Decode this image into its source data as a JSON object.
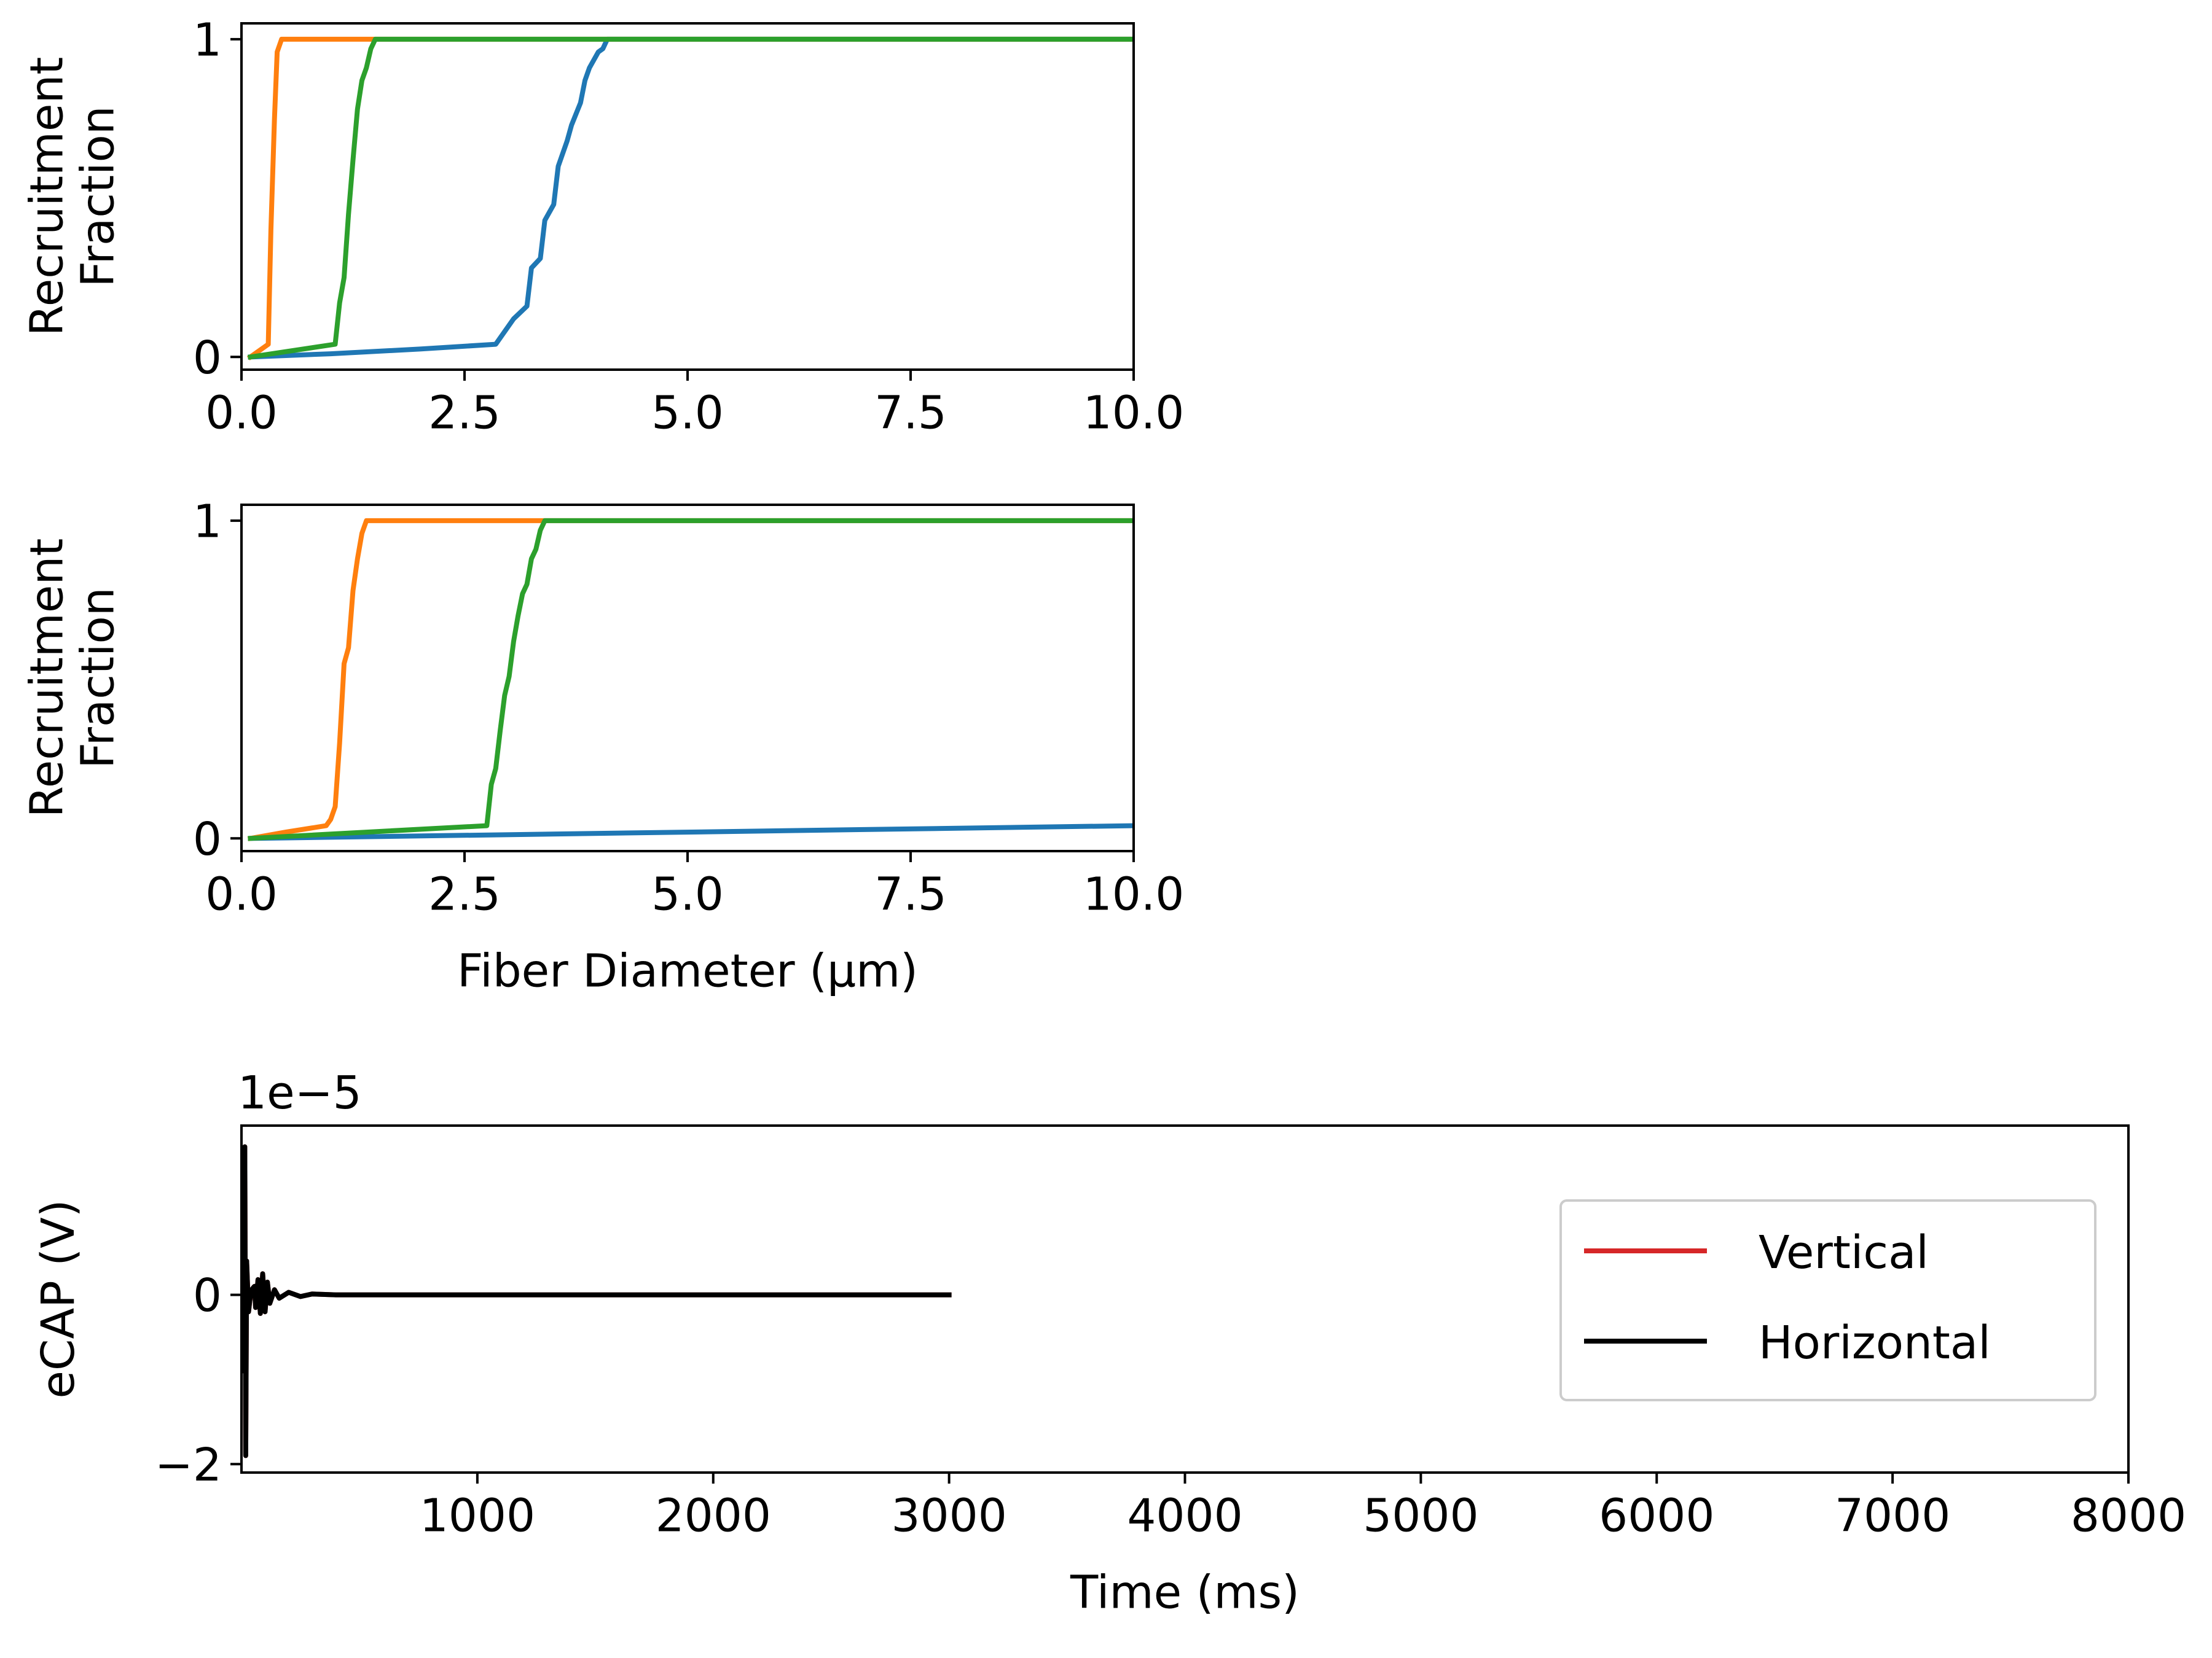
{
  "chart_data": [
    {
      "type": "line",
      "xlabel": "",
      "ylabel": "Recruitment Fraction",
      "ylabel_lines": [
        "Recruitment",
        "Fraction"
      ],
      "xlim": [
        0,
        10
      ],
      "ylim": [
        -0.04,
        1.05
      ],
      "xticks": [
        0.0,
        2.5,
        5.0,
        7.5,
        10.0
      ],
      "xtick_labels": [
        "0.0",
        "2.5",
        "5.0",
        "7.5",
        "10.0"
      ],
      "yticks": [
        0,
        1
      ],
      "ytick_labels": [
        "0",
        "1"
      ],
      "grid": false,
      "series": [
        {
          "color": "#1f77b4",
          "x": [
            0.1,
            1.0,
            2.0,
            2.85,
            2.95,
            3.05,
            3.2,
            3.25,
            3.35,
            3.4,
            3.5,
            3.55,
            3.65,
            3.7,
            3.8,
            3.85,
            3.9,
            4.0,
            4.05,
            4.1,
            10.0
          ],
          "y": [
            0.0,
            0.01,
            0.025,
            0.04,
            0.08,
            0.12,
            0.16,
            0.28,
            0.31,
            0.43,
            0.48,
            0.6,
            0.68,
            0.73,
            0.8,
            0.87,
            0.91,
            0.96,
            0.97,
            1.0,
            1.0
          ]
        },
        {
          "color": "#ff7f0e",
          "x": [
            0.1,
            0.3,
            0.33,
            0.37,
            0.4,
            0.45,
            10.0
          ],
          "y": [
            0.0,
            0.04,
            0.4,
            0.75,
            0.96,
            1.0,
            1.0
          ]
        },
        {
          "color": "#2ca02c",
          "x": [
            0.1,
            1.05,
            1.1,
            1.15,
            1.2,
            1.25,
            1.3,
            1.35,
            1.4,
            1.45,
            1.5,
            10.0
          ],
          "y": [
            0.0,
            0.04,
            0.17,
            0.25,
            0.45,
            0.62,
            0.78,
            0.87,
            0.91,
            0.97,
            1.0,
            1.0
          ]
        }
      ]
    },
    {
      "type": "line",
      "xlabel": "Fiber Diameter (μm)",
      "ylabel": "Recruitment Fraction",
      "ylabel_lines": [
        "Recruitment",
        "Fraction"
      ],
      "xlim": [
        0,
        10
      ],
      "ylim": [
        -0.04,
        1.05
      ],
      "xticks": [
        0.0,
        2.5,
        5.0,
        7.5,
        10.0
      ],
      "xtick_labels": [
        "0.0",
        "2.5",
        "5.0",
        "7.5",
        "10.0"
      ],
      "yticks": [
        0,
        1
      ],
      "ytick_labels": [
        "0",
        "1"
      ],
      "grid": false,
      "series": [
        {
          "color": "#1f77b4",
          "x": [
            0.1,
            10.0
          ],
          "y": [
            0.0,
            0.04
          ]
        },
        {
          "color": "#ff7f0e",
          "x": [
            0.1,
            0.5,
            0.95,
            1.0,
            1.05,
            1.1,
            1.15,
            1.2,
            1.25,
            1.3,
            1.35,
            1.4,
            10.0
          ],
          "y": [
            0.0,
            0.02,
            0.04,
            0.06,
            0.1,
            0.3,
            0.55,
            0.6,
            0.78,
            0.88,
            0.96,
            1.0,
            1.0
          ]
        },
        {
          "color": "#2ca02c",
          "x": [
            0.1,
            2.75,
            2.8,
            2.85,
            2.9,
            2.95,
            3.0,
            3.05,
            3.1,
            3.15,
            3.2,
            3.25,
            3.3,
            3.35,
            3.4,
            10.0
          ],
          "y": [
            0.0,
            0.04,
            0.17,
            0.22,
            0.34,
            0.45,
            0.51,
            0.62,
            0.7,
            0.77,
            0.8,
            0.88,
            0.91,
            0.97,
            1.0,
            1.0
          ]
        }
      ]
    },
    {
      "type": "line",
      "xlabel": "Time (ms)",
      "ylabel": "eCAP (V)",
      "offset_text": "1e−5",
      "xlim": [
        0,
        8000
      ],
      "ylim": [
        -2.1,
        2.0
      ],
      "xticks": [
        1000,
        2000,
        3000,
        4000,
        5000,
        6000,
        7000,
        8000
      ],
      "xtick_labels": [
        "1000",
        "2000",
        "3000",
        "4000",
        "5000",
        "6000",
        "7000",
        "8000"
      ],
      "yticks": [
        -2,
        0
      ],
      "ytick_labels": [
        "−2",
        "0"
      ],
      "grid": false,
      "legend": "right",
      "series": [
        {
          "name": "Vertical",
          "color": "#d62728",
          "x": [
            0,
            5,
            10,
            14,
            18,
            22,
            30,
            40,
            55,
            60,
            70,
            80,
            90,
            100,
            110,
            120,
            140,
            160,
            200,
            250,
            300,
            400,
            3000
          ],
          "y": [
            0.0,
            1.3,
            -0.9,
            1.75,
            -1.9,
            0.4,
            -0.2,
            0.05,
            0.1,
            -0.15,
            0.18,
            -0.22,
            0.25,
            -0.2,
            0.15,
            -0.1,
            0.06,
            -0.04,
            0.03,
            -0.02,
            0.01,
            0.0,
            0.0
          ]
        },
        {
          "name": "Horizontal",
          "color": "#000000",
          "x": [
            0,
            5,
            10,
            14,
            18,
            22,
            30,
            40,
            55,
            60,
            70,
            80,
            90,
            100,
            110,
            120,
            140,
            160,
            200,
            250,
            300,
            400,
            3000
          ],
          "y": [
            0.0,
            1.3,
            -0.9,
            1.75,
            -1.9,
            0.4,
            -0.2,
            0.05,
            0.1,
            -0.15,
            0.18,
            -0.22,
            0.25,
            -0.2,
            0.15,
            -0.1,
            0.06,
            -0.04,
            0.03,
            -0.02,
            0.01,
            0.0,
            0.0
          ]
        }
      ]
    }
  ]
}
